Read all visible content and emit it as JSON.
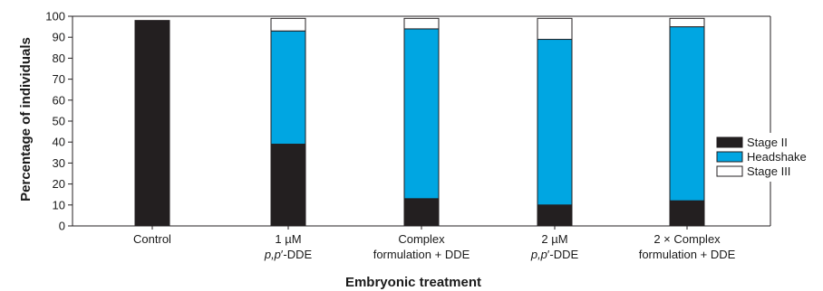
{
  "chart_data": {
    "type": "bar",
    "stacked": true,
    "xlabel": "Embryonic treatment",
    "ylabel": "Percentage of individuals",
    "ylim": [
      0,
      100
    ],
    "yticks": [
      0,
      10,
      20,
      30,
      40,
      50,
      60,
      70,
      80,
      90,
      100
    ],
    "grid": false,
    "legend_position": "right",
    "categories": [
      [
        "Control"
      ],
      [
        "1 µM",
        "p,p′-DDE"
      ],
      [
        "Complex",
        "formulation + DDE"
      ],
      [
        "2 µM",
        "p,p′-DDE"
      ],
      [
        "2 × Complex",
        "formulation + DDE"
      ]
    ],
    "series": [
      {
        "name": "Stage II",
        "color": "#231f20",
        "values": [
          98,
          39,
          13,
          10,
          12
        ]
      },
      {
        "name": "Headshake",
        "color": "#00a6e2",
        "values": [
          0,
          54,
          81,
          79,
          83
        ]
      },
      {
        "name": "Stage III",
        "color": "#ffffff",
        "values": [
          0,
          6,
          5,
          10,
          4
        ]
      }
    ]
  }
}
